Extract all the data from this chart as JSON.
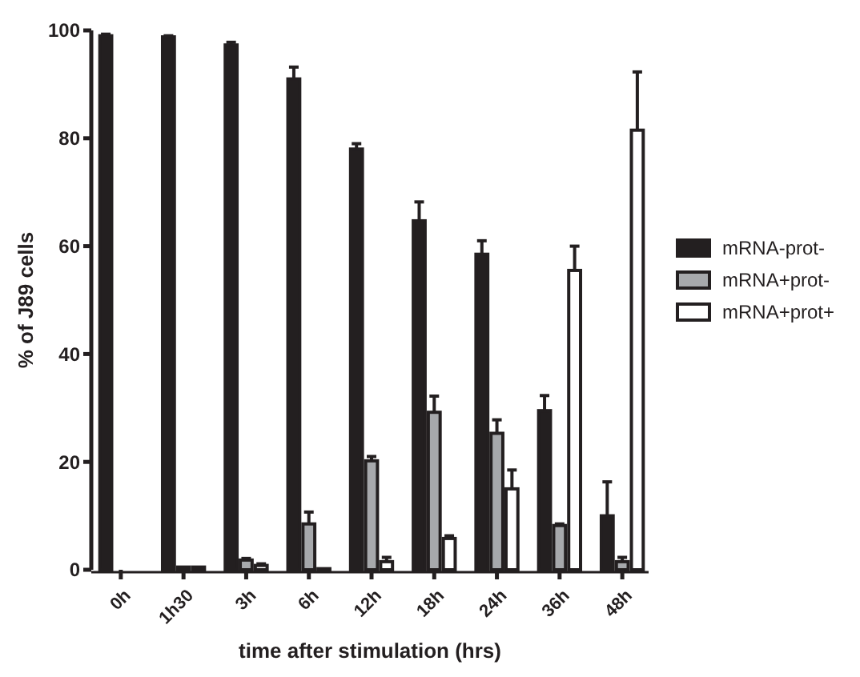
{
  "chart_data": {
    "type": "bar",
    "xlabel": "time after stimulation (hrs)",
    "ylabel": "% of J89 cells",
    "categories": [
      "0h",
      "1h30",
      "3h",
      "6h",
      "12h",
      "18h",
      "24h",
      "36h",
      "48h"
    ],
    "series": [
      {
        "name": "mRNA-prot-",
        "color": "#231f20",
        "values": [
          99,
          98.8,
          97.3,
          91,
          78,
          64.7,
          58.5,
          29.5,
          10
        ],
        "errors": [
          [
            99,
            99.3
          ],
          [
            98.8,
            99
          ],
          [
            97.3,
            97.8
          ],
          [
            91,
            93.2
          ],
          [
            78,
            79
          ],
          [
            64.7,
            68.2
          ],
          [
            58.5,
            61
          ],
          [
            29.5,
            32.3
          ],
          [
            10,
            16.3
          ]
        ]
      },
      {
        "name": "mRNA+prot-",
        "color": "#a7a9ac",
        "values": [
          0,
          0.5,
          1.8,
          8.5,
          20.2,
          29.2,
          25.3,
          8.2,
          1.5
        ],
        "errors": [
          null,
          null,
          [
            1.8,
            2.1
          ],
          [
            8.5,
            10.7
          ],
          [
            20.2,
            21
          ],
          [
            29.2,
            32.2
          ],
          [
            25.3,
            27.8
          ],
          [
            8.2,
            8.5
          ],
          [
            1.5,
            2.3
          ]
        ]
      },
      {
        "name": "mRNA+prot+",
        "color": "#ffffff",
        "values": [
          0,
          0.5,
          0.8,
          0.2,
          1.5,
          5.8,
          15,
          55.5,
          81.5
        ],
        "errors": [
          null,
          null,
          [
            0.8,
            1.1
          ],
          null,
          [
            1.5,
            2.3
          ],
          [
            5.8,
            6.3
          ],
          [
            15,
            18.5
          ],
          [
            55.5,
            60
          ],
          [
            81.5,
            92.3
          ]
        ]
      }
    ],
    "ylim": [
      0,
      100
    ],
    "yticks": [
      0,
      20,
      40,
      60,
      80,
      100
    ],
    "legend": "right",
    "grid": false
  }
}
